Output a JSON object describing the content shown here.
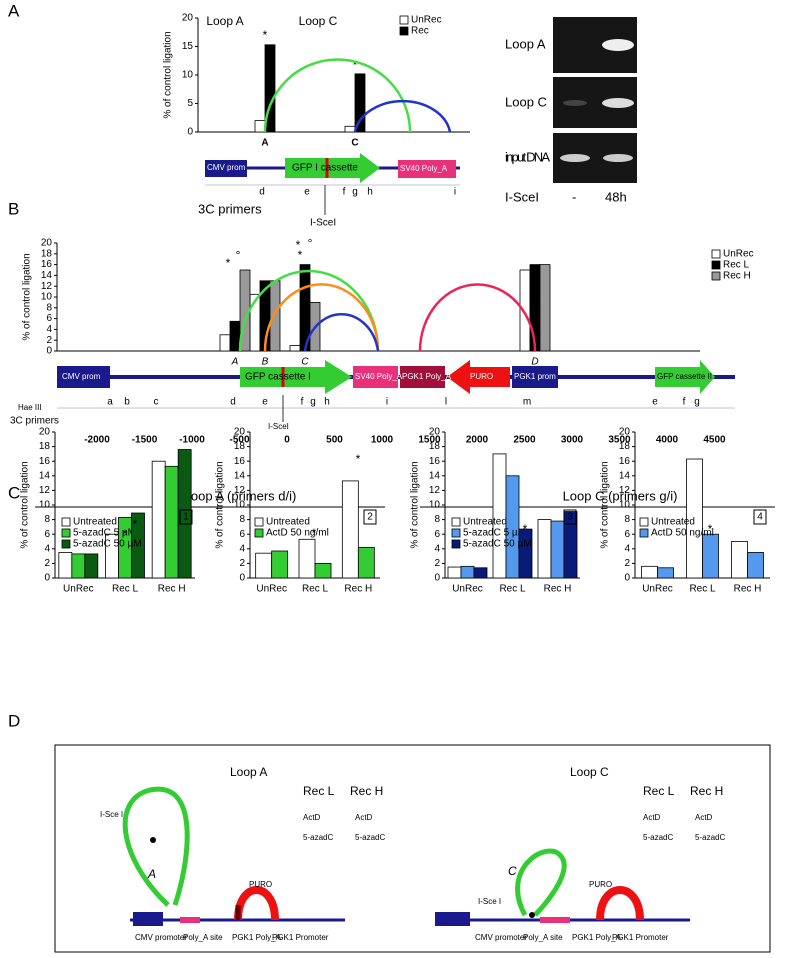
{
  "panel_labels": [
    "A",
    "B",
    "C",
    "D"
  ],
  "chart_data": [
    {
      "type": "bar",
      "y_label": "% of control ligation",
      "categories": [
        "A",
        "C"
      ],
      "series": [
        {
          "name": "UnRec",
          "color": "#ffffff",
          "values": [
            2,
            1
          ]
        },
        {
          "name": "Rec",
          "color": "#000000",
          "values": [
            15.3,
            10.2
          ]
        }
      ],
      "ylim": [
        0,
        20
      ],
      "yticks": [
        0,
        5,
        10,
        15,
        20
      ],
      "annotations": [
        "Loop A",
        "Loop C",
        "*",
        "*"
      ]
    },
    {
      "type": "bar",
      "y_label": "% of control ligation",
      "categories": [
        "A",
        "B",
        "C",
        "D"
      ],
      "series": [
        {
          "name": "UnRec",
          "color": "#ffffff",
          "values": [
            3,
            10.5,
            1,
            15
          ]
        },
        {
          "name": "Rec L",
          "color": "#000000",
          "values": [
            5.5,
            13,
            16,
            16
          ]
        },
        {
          "name": "Rec H",
          "color": "#999999",
          "values": [
            15,
            13,
            9,
            16
          ]
        }
      ],
      "ylim": [
        0,
        20
      ],
      "yticks": [
        0,
        2,
        4,
        6,
        8,
        10,
        12,
        14,
        16,
        18,
        20
      ],
      "annotations": [
        "*",
        "°",
        "*",
        "*",
        "°"
      ]
    },
    {
      "type": "bar",
      "panel_number": "1",
      "y_label": "% of control ligation",
      "categories": [
        "UnRec",
        "Rec L",
        "Rec H"
      ],
      "series": [
        {
          "name": "Untreated",
          "color": "#ffffff",
          "values": [
            3.5,
            6,
            16
          ]
        },
        {
          "name": "5-azadC 5 µM",
          "color": "#33cc33",
          "values": [
            3.3,
            8.3,
            15.3
          ]
        },
        {
          "name": "5-azadC 50 µM",
          "color": "#0a5a14",
          "values": [
            3.3,
            8.9,
            17.6
          ]
        }
      ],
      "ylim": [
        0,
        20
      ],
      "yticks": [
        0,
        2,
        4,
        6,
        8,
        10,
        12,
        14,
        16,
        18,
        20
      ],
      "annotations": [
        "*",
        "*"
      ]
    },
    {
      "type": "bar",
      "panel_number": "2",
      "y_label": "% of control ligation",
      "categories": [
        "UnRec",
        "Rec L",
        "Rec H"
      ],
      "series": [
        {
          "name": "Untreated",
          "color": "#ffffff",
          "values": [
            3.4,
            5.3,
            13.3
          ]
        },
        {
          "name": "ActD 50 ng/ml",
          "color": "#33cc33",
          "values": [
            3.7,
            2,
            4.2
          ]
        }
      ],
      "ylim": [
        0,
        20
      ],
      "yticks": [
        0,
        2,
        4,
        6,
        8,
        10,
        12,
        14,
        16,
        18,
        20
      ],
      "annotations": [
        "*",
        "*"
      ]
    },
    {
      "type": "bar",
      "panel_number": "3",
      "y_label": "% of control ligation",
      "categories": [
        "UnRec",
        "Rec L",
        "Rec H"
      ],
      "series": [
        {
          "name": "Untreated",
          "color": "#ffffff",
          "values": [
            1.5,
            17,
            8
          ]
        },
        {
          "name": "5-azadC 5 µM",
          "color": "#5599ee",
          "values": [
            1.6,
            14,
            7.8
          ]
        },
        {
          "name": "5-azadC 50 µM",
          "color": "#0a1a78",
          "values": [
            1.4,
            6.7,
            9.1
          ]
        }
      ],
      "ylim": [
        0,
        20
      ],
      "yticks": [
        0,
        2,
        4,
        6,
        8,
        10,
        12,
        14,
        16,
        18,
        20
      ],
      "annotations": [
        "*"
      ]
    },
    {
      "type": "bar",
      "panel_number": "4",
      "y_label": "% of control ligation",
      "categories": [
        "UnRec",
        "Rec L",
        "Rec H"
      ],
      "series": [
        {
          "name": "Untreated",
          "color": "#ffffff",
          "values": [
            1.6,
            16.3,
            5
          ]
        },
        {
          "name": "ActD 50 ng/ml",
          "color": "#5599ee",
          "values": [
            1.4,
            6,
            3.5
          ]
        }
      ],
      "ylim": [
        0,
        20
      ],
      "yticks": [
        0,
        2,
        4,
        6,
        8,
        10,
        12,
        14,
        16,
        18,
        20
      ],
      "annotations": [
        "*"
      ]
    }
  ],
  "gel": {
    "rows": [
      "Loop A",
      "Loop C",
      "input DNA"
    ],
    "treatment": "I-SceI",
    "lanes": [
      "-",
      "48h"
    ]
  },
  "map_a": {
    "cmv": "CMV prom",
    "gfp": "GFP I cassette",
    "sv40": "SV40 Poly_A",
    "primers_label": "3C primers",
    "isce": "I-SceI",
    "primers": [
      "d",
      "e",
      "f",
      "g",
      "h",
      "i"
    ]
  },
  "map_b": {
    "cmv": "CMV prom",
    "gfp1": "GFP cassette I",
    "sv40": "SV40 Poly_A",
    "pgk_polya": "PGK1 Poly_A",
    "puro": "PURO",
    "pgk_prom": "PGK1 prom",
    "gfp2": "GFP cassette II",
    "hae": "Hae III",
    "primers_label": "3C primers",
    "isce": "I-SceI",
    "primers": [
      "a",
      "b",
      "c",
      "d",
      "e",
      "f",
      "g",
      "h",
      "i",
      "l",
      "m",
      "e",
      "f",
      "g"
    ],
    "xticks": [
      -2000,
      -1500,
      -1000,
      -500,
      0,
      500,
      1000,
      1500,
      2000,
      2500,
      3000,
      3500,
      4000,
      4500
    ]
  },
  "panel_c_headers": [
    "Loop A (primers d/i)",
    "Loop C (primers g/i)"
  ],
  "diagram_d": {
    "left": {
      "title": "Loop A",
      "rec_l": "Rec L",
      "rec_h": "Rec H",
      "actd_l": "ActD",
      "aza_l": "5-azadC",
      "actd_h": "ActD",
      "aza_h": "5-azadC",
      "isce": "I-Sce I",
      "loop": "A",
      "cmv": "CMV promoter",
      "polya": "Poly_A site",
      "pgk_polya": "PGK1 Poly_A",
      "pgk_prom": "PGK1 Promoter",
      "puro": "PURO"
    },
    "right": {
      "title": "Loop C",
      "rec_l": "Rec L",
      "rec_h": "Rec H",
      "actd_l": "ActD",
      "aza_l": "5-azadC",
      "actd_h": "ActD",
      "aza_h": "5-azadC",
      "isce": "I-Sce I",
      "loop": "C",
      "cmv": "CMV promoter",
      "polya": "Poly_A site",
      "pgk_polya": "PGK1 Poly_A",
      "pgk_prom": "PGK1 Promoter",
      "puro": "PURO"
    }
  }
}
